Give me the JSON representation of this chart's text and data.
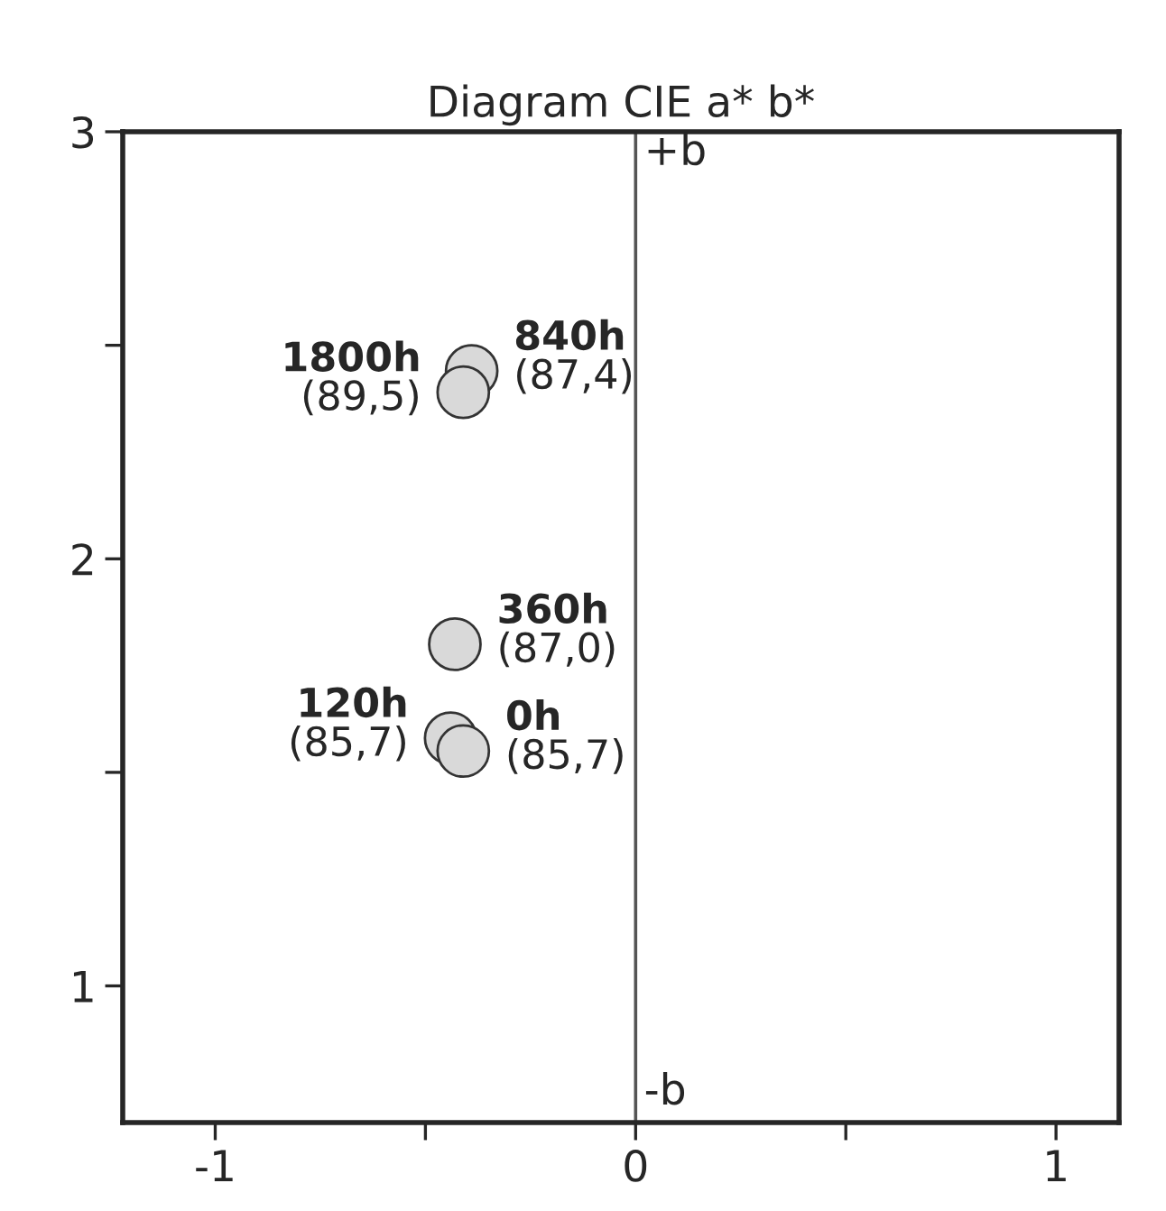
{
  "chart_data": {
    "type": "scatter",
    "title": "Diagram CIE a* b*",
    "xlim": [
      -1.22,
      1.15
    ],
    "ylim": [
      0.68,
      3
    ],
    "xticks": [
      -1,
      {
        "value": -0.5,
        "label": null
      },
      0,
      {
        "value": 0.5,
        "label": null
      },
      1
    ],
    "yticks": [
      1,
      {
        "value": 1.5,
        "label": null
      },
      2,
      {
        "value": 2.5,
        "label": null
      },
      3
    ],
    "grid": false,
    "marker": "circle",
    "ref_lines": [
      {
        "axis": "x",
        "value": 0,
        "color": "#555555"
      }
    ],
    "annotations": [
      {
        "text": "+b",
        "x": 0,
        "y": 2.95
      },
      {
        "text": "-b",
        "x": 0,
        "y": 0.75
      },
      {
        "text": "(87,4)",
        "x": -0.39,
        "y": 2.44
      },
      {
        "text": "(89,5)",
        "x": -0.41,
        "y": 2.39
      },
      {
        "text": "(87,0)",
        "x": -0.43,
        "y": 1.8
      },
      {
        "text": "(85,7)",
        "x": -0.44,
        "y": 1.58
      },
      {
        "text": "(85,7)",
        "x": -0.41,
        "y": 1.55
      }
    ],
    "series": [
      {
        "name": "840h",
        "color": "#d9d9d9",
        "x": [
          -0.39
        ],
        "values": [
          2.44
        ]
      },
      {
        "name": "1800h",
        "color": "#d9d9d9",
        "x": [
          -0.41
        ],
        "values": [
          2.39
        ]
      },
      {
        "name": "360h",
        "color": "#d9d9d9",
        "x": [
          -0.43
        ],
        "values": [
          1.8
        ]
      },
      {
        "name": "120h",
        "color": "#d9d9d9",
        "x": [
          -0.44
        ],
        "values": [
          1.58
        ]
      },
      {
        "name": "0h",
        "color": "#d9d9d9",
        "x": [
          -0.41
        ],
        "values": [
          1.55
        ]
      }
    ]
  }
}
